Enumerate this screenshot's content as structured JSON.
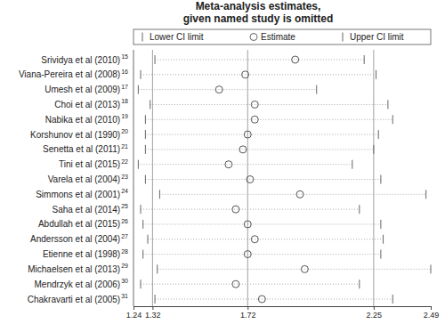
{
  "chart_data": {
    "type": "forest",
    "title": [
      "Meta-analysis estimates,",
      "given named study is omitted"
    ],
    "orientation": "horizontal",
    "legend": "top",
    "categories": [
      "Srividya et al (2010)",
      "Viana-Pereira et al (2008)",
      "Umesh et al (2009)",
      "Choi et al (2013)",
      "Nabika et al (2010)",
      "Korshunov et al (1990)",
      "Senetta et al (2011)",
      "Tini et al (2015)",
      "Varela et al (2004)",
      "Simmons et al (2001)",
      "Saha et al (2014)",
      "Abdullah et al (2015)",
      "Andersson et al (2004)",
      "Etienne et al (1998)",
      "Michaelsen et al (2013)",
      "Mendrzyk et al (2006)",
      "Chakravarti et al (2005)"
    ],
    "refs": [
      15,
      16,
      17,
      18,
      19,
      20,
      21,
      22,
      23,
      24,
      25,
      26,
      27,
      28,
      29,
      30,
      31
    ],
    "series": [
      {
        "name": "Lower CI limit",
        "marker": "line",
        "values": [
          1.33,
          1.27,
          1.26,
          1.31,
          1.29,
          1.29,
          1.29,
          1.26,
          1.29,
          1.35,
          1.27,
          1.28,
          1.3,
          1.28,
          1.34,
          1.27,
          1.33
        ]
      },
      {
        "name": "Estimate",
        "marker": "circle",
        "values": [
          1.92,
          1.71,
          1.6,
          1.75,
          1.75,
          1.72,
          1.7,
          1.64,
          1.73,
          1.94,
          1.67,
          1.72,
          1.75,
          1.72,
          1.96,
          1.67,
          1.78
        ]
      },
      {
        "name": "Upper CI limit",
        "marker": "line",
        "values": [
          2.21,
          2.26,
          2.01,
          2.31,
          2.33,
          2.27,
          2.25,
          2.16,
          2.28,
          2.47,
          2.19,
          2.28,
          2.29,
          2.28,
          2.49,
          2.19,
          2.33
        ]
      }
    ],
    "overall": {
      "lower": 1.32,
      "estimate": 1.72,
      "upper": 2.25
    },
    "xlim": [
      1.24,
      2.49
    ],
    "xticks": [
      1.24,
      1.32,
      1.72,
      2.25,
      2.49
    ]
  }
}
